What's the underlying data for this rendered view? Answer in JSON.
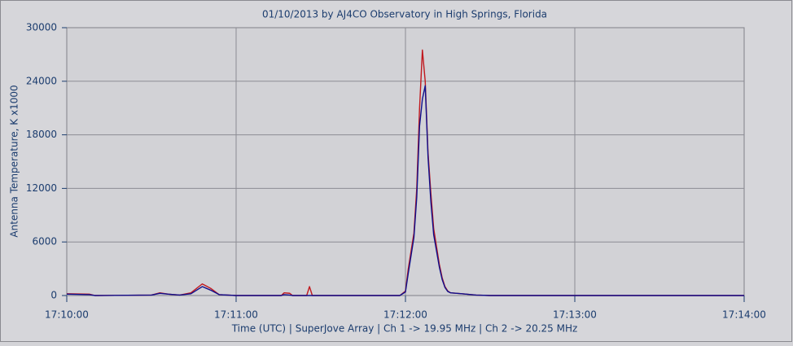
{
  "chart_data": {
    "type": "line",
    "title": "01/10/2013  by  AJ4CO Observatory  in  High Springs, Florida",
    "xlabel": "Time (UTC)  |  SuperJove Array  |  Ch 1 -> 19.95 MHz  |  Ch 2 -> 20.25 MHz",
    "ylabel": "Antenna Temperature, K x1000",
    "x": [
      "17:10:00",
      "17:10:08",
      "17:10:10",
      "17:10:30",
      "17:10:33",
      "17:10:36",
      "17:10:40",
      "17:10:44",
      "17:10:48",
      "17:10:51",
      "17:10:54",
      "17:11:00",
      "17:11:16",
      "17:11:17",
      "17:11:19",
      "17:11:20",
      "17:11:25",
      "17:11:26",
      "17:11:27",
      "17:11:58",
      "17:12:00",
      "17:12:01",
      "17:12:02",
      "17:12:03",
      "17:12:04",
      "17:12:05",
      "17:12:06",
      "17:12:07",
      "17:12:08",
      "17:12:09",
      "17:12:10",
      "17:12:11",
      "17:12:12",
      "17:12:13",
      "17:12:14",
      "17:12:15",
      "17:12:16",
      "17:12:20",
      "17:12:25",
      "17:12:30",
      "17:14:00"
    ],
    "series": [
      {
        "name": "Ch 1",
        "color": "#c0181e",
        "values": [
          200,
          150,
          0,
          50,
          300,
          150,
          50,
          300,
          1300,
          800,
          100,
          0,
          0,
          300,
          250,
          0,
          0,
          1000,
          0,
          0,
          500,
          3000,
          5000,
          7000,
          12000,
          21000,
          27500,
          24000,
          16000,
          11500,
          7500,
          5500,
          3500,
          2000,
          1000,
          500,
          300,
          200,
          50,
          0,
          0
        ]
      },
      {
        "name": "Ch 2",
        "color": "#10108c",
        "values": [
          150,
          100,
          0,
          50,
          250,
          150,
          50,
          200,
          1000,
          600,
          100,
          0,
          0,
          100,
          50,
          0,
          0,
          0,
          0,
          0,
          400,
          2500,
          4500,
          6500,
          11000,
          19000,
          22000,
          23500,
          15500,
          10500,
          6800,
          5000,
          3200,
          1800,
          900,
          450,
          300,
          200,
          50,
          0,
          0
        ]
      }
    ],
    "xlim": [
      "17:10:00",
      "17:14:00"
    ],
    "xticks": [
      "17:10:00",
      "17:11:00",
      "17:12:00",
      "17:13:00",
      "17:14:00"
    ],
    "ylim": [
      0,
      30000
    ],
    "yticks": [
      0,
      6000,
      12000,
      18000,
      24000,
      30000
    ],
    "grid": true
  }
}
